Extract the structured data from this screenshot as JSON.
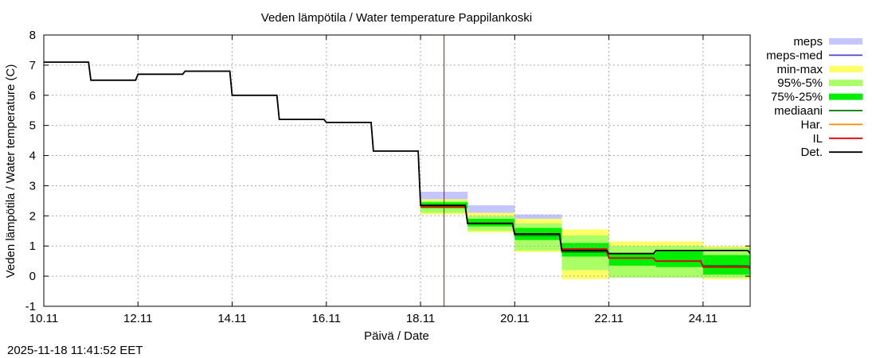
{
  "chart_data": {
    "type": "line",
    "title": "Veden lämpötila / Water temperature Pappilankoski",
    "xlabel": "Päivä / Date",
    "ylabel": "Veden lämpötila / Water temperature (C)",
    "footer": "2025-11-18 11:41:52 EET",
    "x_unit": "days since 10.11",
    "xlim": [
      0,
      15
    ],
    "ylim": [
      -1,
      8
    ],
    "yticks": [
      "-1",
      "0",
      "1",
      "2",
      "3",
      "4",
      "5",
      "6",
      "7",
      "8"
    ],
    "xticks": [
      {
        "label": "10.11",
        "value": 0
      },
      {
        "label": "12.11",
        "value": 2
      },
      {
        "label": "14.11",
        "value": 4
      },
      {
        "label": "16.11",
        "value": 6
      },
      {
        "label": "18.11",
        "value": 8
      },
      {
        "label": "20.11",
        "value": 10
      },
      {
        "label": "22.11",
        "value": 12
      },
      {
        "label": "24.11",
        "value": 14
      }
    ],
    "now_x": 8.5,
    "legend": [
      {
        "key": "meps",
        "label": "meps",
        "kind": "band",
        "color": "#c5c5ff"
      },
      {
        "key": "meps_med",
        "label": "meps-med",
        "kind": "line",
        "color": "#4444cc"
      },
      {
        "key": "minmax",
        "label": "min-max",
        "kind": "band",
        "color": "#ffff66"
      },
      {
        "key": "p95_5",
        "label": "95%-5%",
        "kind": "band",
        "color": "#aaff66"
      },
      {
        "key": "p75_25",
        "label": "75%-25%",
        "kind": "band",
        "color": "#00ee00"
      },
      {
        "key": "median",
        "label": "mediaani",
        "kind": "line",
        "color": "#007700"
      },
      {
        "key": "har",
        "label": "Har.",
        "kind": "line",
        "color": "#ff8800"
      },
      {
        "key": "il",
        "label": "IL",
        "kind": "line",
        "color": "#dd0000"
      },
      {
        "key": "det",
        "label": "Det.",
        "kind": "line",
        "color": "#000000"
      }
    ],
    "series": {
      "det": [
        [
          0,
          7.1
        ],
        [
          0.95,
          7.1
        ],
        [
          1.0,
          6.5
        ],
        [
          1.95,
          6.5
        ],
        [
          2.0,
          6.7
        ],
        [
          2.95,
          6.7
        ],
        [
          3.0,
          6.8
        ],
        [
          3.95,
          6.8
        ],
        [
          4.0,
          6.0
        ],
        [
          4.95,
          6.0
        ],
        [
          5.0,
          5.2
        ],
        [
          5.95,
          5.2
        ],
        [
          6.0,
          5.1
        ],
        [
          6.95,
          5.1
        ],
        [
          7.0,
          4.15
        ],
        [
          7.95,
          4.15
        ],
        [
          8.0,
          2.35
        ],
        [
          8.95,
          2.35
        ],
        [
          9.0,
          1.75
        ],
        [
          9.95,
          1.75
        ],
        [
          10.0,
          1.4
        ],
        [
          10.95,
          1.4
        ],
        [
          11.0,
          0.85
        ],
        [
          11.95,
          0.85
        ],
        [
          12.0,
          0.75
        ],
        [
          12.95,
          0.75
        ],
        [
          13.0,
          0.85
        ],
        [
          13.95,
          0.85
        ],
        [
          14.0,
          0.85
        ],
        [
          14.95,
          0.85
        ],
        [
          15.0,
          0.75
        ]
      ],
      "il": [
        [
          8.0,
          2.3
        ],
        [
          8.95,
          2.3
        ],
        [
          9.0,
          1.75
        ],
        [
          9.95,
          1.75
        ],
        [
          10.0,
          1.4
        ],
        [
          10.95,
          1.4
        ],
        [
          11.0,
          0.9
        ],
        [
          11.95,
          0.9
        ],
        [
          12.0,
          0.6
        ],
        [
          12.95,
          0.6
        ],
        [
          13.0,
          0.5
        ],
        [
          13.95,
          0.5
        ],
        [
          14.0,
          0.3
        ],
        [
          14.95,
          0.3
        ],
        [
          15.0,
          0.25
        ]
      ],
      "median": [
        [
          0,
          7.1
        ],
        [
          0.95,
          7.1
        ],
        [
          1.0,
          6.5
        ],
        [
          1.95,
          6.5
        ],
        [
          2.0,
          6.7
        ],
        [
          2.95,
          6.7
        ],
        [
          3.0,
          6.8
        ],
        [
          3.95,
          6.8
        ],
        [
          4.0,
          6.0
        ],
        [
          4.95,
          6.0
        ],
        [
          5.0,
          5.2
        ],
        [
          5.95,
          5.2
        ],
        [
          6.0,
          5.1
        ],
        [
          6.95,
          5.1
        ],
        [
          7.0,
          4.15
        ],
        [
          7.95,
          4.15
        ],
        [
          8.0,
          2.35
        ],
        [
          8.95,
          2.35
        ],
        [
          9.0,
          1.75
        ],
        [
          9.95,
          1.75
        ],
        [
          10.0,
          1.35
        ],
        [
          10.95,
          1.35
        ],
        [
          11.0,
          0.8
        ],
        [
          11.95,
          0.8
        ],
        [
          12.0,
          0.6
        ],
        [
          12.95,
          0.6
        ],
        [
          13.0,
          0.5
        ],
        [
          13.95,
          0.5
        ],
        [
          14.0,
          0.35
        ],
        [
          14.95,
          0.35
        ],
        [
          15.0,
          0.3
        ]
      ],
      "har": [
        [
          8.0,
          2.3
        ],
        [
          8.95,
          2.3
        ],
        [
          9.0,
          1.75
        ],
        [
          9.95,
          1.75
        ],
        [
          10.0,
          1.4
        ],
        [
          10.95,
          1.4
        ],
        [
          11.0,
          0.85
        ],
        [
          11.95,
          0.85
        ],
        [
          12.0,
          0.6
        ],
        [
          12.95,
          0.6
        ],
        [
          13.0,
          0.5
        ],
        [
          13.95,
          0.5
        ],
        [
          14.0,
          0.3
        ],
        [
          14.95,
          0.3
        ],
        [
          15.0,
          0.25
        ]
      ]
    },
    "bands": {
      "meps": [
        {
          "x0": 8.0,
          "x1": 9.0,
          "lo": 2.45,
          "hi": 2.8
        },
        {
          "x0": 9.0,
          "x1": 10.0,
          "lo": 2.0,
          "hi": 2.35
        },
        {
          "x0": 10.0,
          "x1": 11.0,
          "lo": 1.8,
          "hi": 2.05
        }
      ],
      "minmax": [
        {
          "x0": 8.0,
          "x1": 9.0,
          "lo": 2.05,
          "hi": 2.55
        },
        {
          "x0": 9.0,
          "x1": 10.0,
          "lo": 1.45,
          "hi": 2.1
        },
        {
          "x0": 10.0,
          "x1": 11.0,
          "lo": 0.8,
          "hi": 1.9
        },
        {
          "x0": 11.0,
          "x1": 12.0,
          "lo": -0.1,
          "hi": 1.55
        },
        {
          "x0": 12.0,
          "x1": 13.0,
          "lo": 0.0,
          "hi": 1.15
        },
        {
          "x0": 13.0,
          "x1": 14.0,
          "lo": -0.05,
          "hi": 1.15
        },
        {
          "x0": 14.0,
          "x1": 15.0,
          "lo": -0.1,
          "hi": 1.0
        }
      ],
      "p95_5": [
        {
          "x0": 8.0,
          "x1": 9.0,
          "lo": 2.1,
          "hi": 2.5
        },
        {
          "x0": 9.0,
          "x1": 10.0,
          "lo": 1.5,
          "hi": 2.0
        },
        {
          "x0": 10.0,
          "x1": 11.0,
          "lo": 0.85,
          "hi": 1.75
        },
        {
          "x0": 11.0,
          "x1": 12.0,
          "lo": 0.2,
          "hi": 1.35
        },
        {
          "x0": 12.0,
          "x1": 13.0,
          "lo": -0.05,
          "hi": 1.0
        },
        {
          "x0": 13.0,
          "x1": 14.0,
          "lo": -0.05,
          "hi": 1.0
        },
        {
          "x0": 14.0,
          "x1": 15.0,
          "lo": -0.05,
          "hi": 0.95
        }
      ],
      "p75_25": [
        {
          "x0": 8.0,
          "x1": 9.0,
          "lo": 2.25,
          "hi": 2.45
        },
        {
          "x0": 9.0,
          "x1": 10.0,
          "lo": 1.65,
          "hi": 1.9
        },
        {
          "x0": 10.0,
          "x1": 11.0,
          "lo": 1.2,
          "hi": 1.6
        },
        {
          "x0": 11.0,
          "x1": 12.0,
          "lo": 0.65,
          "hi": 1.1
        },
        {
          "x0": 12.0,
          "x1": 13.0,
          "lo": 0.35,
          "hi": 0.75
        },
        {
          "x0": 13.0,
          "x1": 14.0,
          "lo": 0.3,
          "hi": 0.85
        },
        {
          "x0": 14.0,
          "x1": 15.0,
          "lo": 0.05,
          "hi": 0.7
        }
      ]
    }
  }
}
